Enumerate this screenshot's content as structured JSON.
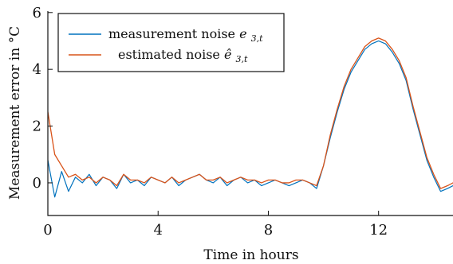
{
  "chart_data": {
    "type": "line",
    "title": "",
    "xlabel": "Time in hours",
    "ylabel": "Measurement error in °C",
    "xlim": [
      0,
      14.7
    ],
    "ylim": [
      -1.15,
      6.05
    ],
    "xticks": [
      0,
      4,
      8,
      12
    ],
    "yticks": [
      0,
      2,
      4,
      6
    ],
    "xtick_labels": [
      "0",
      "4",
      "8",
      "12"
    ],
    "ytick_labels": [
      "0",
      "2",
      "4",
      "6"
    ],
    "grid": false,
    "legend_position": "top-left",
    "series": [
      {
        "name": "measurement noise e₃,ₜ",
        "color": "#0072BD",
        "x": [
          0.0,
          0.25,
          0.5,
          0.75,
          1.0,
          1.25,
          1.5,
          1.75,
          2.0,
          2.25,
          2.5,
          2.75,
          3.0,
          3.25,
          3.5,
          3.75,
          4.0,
          4.25,
          4.5,
          4.75,
          5.0,
          5.25,
          5.5,
          5.75,
          6.0,
          6.25,
          6.5,
          6.75,
          7.0,
          7.25,
          7.5,
          7.75,
          8.0,
          8.25,
          8.5,
          8.75,
          9.0,
          9.25,
          9.5,
          9.75,
          10.0,
          10.25,
          10.5,
          10.75,
          11.0,
          11.25,
          11.5,
          11.75,
          12.0,
          12.25,
          12.5,
          12.75,
          13.0,
          13.25,
          13.5,
          13.75,
          14.0,
          14.25,
          14.5,
          14.7
        ],
        "y": [
          0.8,
          -0.5,
          0.4,
          -0.3,
          0.2,
          0.0,
          0.3,
          -0.1,
          0.2,
          0.1,
          -0.2,
          0.3,
          0.0,
          0.1,
          -0.1,
          0.2,
          0.1,
          0.0,
          0.2,
          -0.1,
          0.1,
          0.2,
          0.3,
          0.1,
          0.0,
          0.2,
          -0.1,
          0.1,
          0.2,
          0.0,
          0.1,
          -0.1,
          0.0,
          0.1,
          0.0,
          -0.1,
          0.0,
          0.1,
          0.0,
          -0.2,
          0.6,
          1.6,
          2.5,
          3.3,
          3.9,
          4.3,
          4.7,
          4.9,
          5.0,
          4.9,
          4.6,
          4.2,
          3.6,
          2.6,
          1.7,
          0.8,
          0.2,
          -0.3,
          -0.2,
          -0.1
        ]
      },
      {
        "name": "estimated noise ê₃,ₜ",
        "color": "#D95319",
        "x": [
          0.0,
          0.25,
          0.5,
          0.75,
          1.0,
          1.25,
          1.5,
          1.75,
          2.0,
          2.25,
          2.5,
          2.75,
          3.0,
          3.25,
          3.5,
          3.75,
          4.0,
          4.25,
          4.5,
          4.75,
          5.0,
          5.25,
          5.5,
          5.75,
          6.0,
          6.25,
          6.5,
          6.75,
          7.0,
          7.25,
          7.5,
          7.75,
          8.0,
          8.25,
          8.5,
          8.75,
          9.0,
          9.25,
          9.5,
          9.75,
          10.0,
          10.25,
          10.5,
          10.75,
          11.0,
          11.25,
          11.5,
          11.75,
          12.0,
          12.25,
          12.5,
          12.75,
          13.0,
          13.25,
          13.5,
          13.75,
          14.0,
          14.25,
          14.5,
          14.7
        ],
        "y": [
          2.5,
          1.0,
          0.6,
          0.2,
          0.3,
          0.1,
          0.2,
          0.0,
          0.2,
          0.1,
          -0.1,
          0.3,
          0.1,
          0.1,
          0.0,
          0.2,
          0.1,
          0.0,
          0.2,
          0.0,
          0.1,
          0.2,
          0.3,
          0.1,
          0.1,
          0.2,
          0.0,
          0.1,
          0.2,
          0.1,
          0.1,
          0.0,
          0.1,
          0.1,
          0.0,
          0.0,
          0.1,
          0.1,
          0.0,
          -0.1,
          0.6,
          1.7,
          2.6,
          3.4,
          4.0,
          4.4,
          4.8,
          5.0,
          5.1,
          5.0,
          4.7,
          4.3,
          3.7,
          2.7,
          1.8,
          0.9,
          0.3,
          -0.2,
          -0.1,
          0.0
        ]
      }
    ],
    "legend": {
      "entries": [
        {
          "series": 0,
          "prefix": "measurement noise ",
          "symbol": "e",
          "subscript": "3,t"
        },
        {
          "series": 1,
          "prefix": "estimated noise ",
          "symbol": "ê",
          "subscript": "3,t"
        }
      ]
    }
  }
}
